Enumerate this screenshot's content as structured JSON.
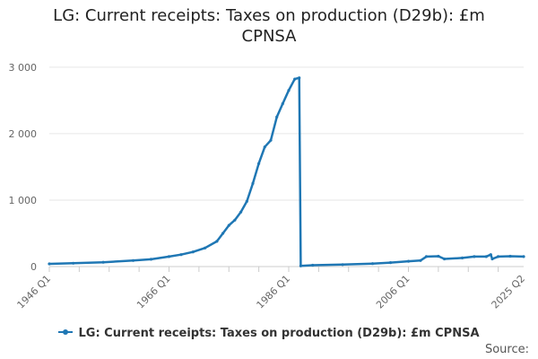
{
  "chart_data": {
    "type": "line",
    "title_line1": "LG: Current receipts: Taxes on production (D29b): £m",
    "title_line2": "CPNSA",
    "xlabel": "",
    "ylabel": "",
    "x_tick_labels": [
      "1946 Q1",
      "1966 Q1",
      "1986 Q1",
      "2006 Q1",
      "2025 Q2"
    ],
    "y_tick_labels": [
      "0",
      "1 000",
      "2 000",
      "3 000"
    ],
    "y_ticks": [
      0,
      1000,
      2000,
      3000
    ],
    "ylim": [
      0,
      3200
    ],
    "x_range": [
      1946,
      2025.25
    ],
    "grid": true,
    "legend_position": "bottom",
    "color": "#1f77b4",
    "series": [
      {
        "name": "LG: Current receipts: Taxes on production (D29b): £m CPNSA",
        "points": [
          [
            1946,
            40
          ],
          [
            1950,
            50
          ],
          [
            1955,
            65
          ],
          [
            1960,
            90
          ],
          [
            1963,
            110
          ],
          [
            1966,
            150
          ],
          [
            1968,
            180
          ],
          [
            1970,
            220
          ],
          [
            1972,
            280
          ],
          [
            1974,
            380
          ],
          [
            1975,
            500
          ],
          [
            1976,
            620
          ],
          [
            1977,
            700
          ],
          [
            1978,
            820
          ],
          [
            1979,
            980
          ],
          [
            1980,
            1250
          ],
          [
            1981,
            1550
          ],
          [
            1982,
            1800
          ],
          [
            1983,
            1900
          ],
          [
            1984,
            2250
          ],
          [
            1985,
            2450
          ],
          [
            1986,
            2650
          ],
          [
            1987,
            2820
          ],
          [
            1987.75,
            2840
          ],
          [
            1988,
            10
          ],
          [
            1990,
            20
          ],
          [
            1995,
            30
          ],
          [
            2000,
            45
          ],
          [
            2003,
            60
          ],
          [
            2006,
            80
          ],
          [
            2008,
            90
          ],
          [
            2009,
            150
          ],
          [
            2011,
            155
          ],
          [
            2012,
            115
          ],
          [
            2015,
            130
          ],
          [
            2017,
            150
          ],
          [
            2019,
            150
          ],
          [
            2019.75,
            180
          ],
          [
            2020,
            115
          ],
          [
            2021,
            150
          ],
          [
            2023,
            155
          ],
          [
            2025.25,
            150
          ]
        ]
      }
    ]
  },
  "footer": {
    "source_label": "Source:"
  }
}
